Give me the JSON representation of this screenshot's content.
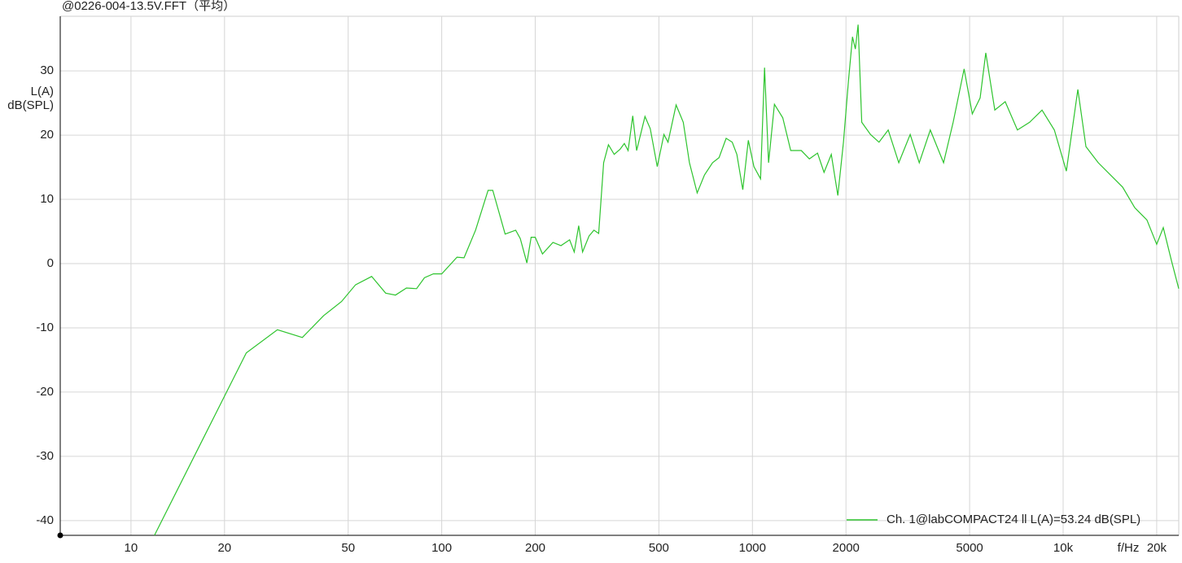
{
  "chart_data": {
    "type": "line",
    "title": "@0226-004-13.5V.FFT（平均）",
    "y_label": "L(A)",
    "y_unit": "dB(SPL)",
    "x_label": "f/Hz",
    "log_x": true,
    "grid": true,
    "legend": "lower right",
    "xlim": [
      5.92,
      23550
    ],
    "ylim": [
      -42.3,
      38.5
    ],
    "xticks": [
      10,
      20,
      50,
      100,
      200,
      500,
      1000,
      2000,
      5000,
      {
        "value": 10000,
        "label": "10k"
      },
      {
        "value": 20000,
        "label": "20k"
      }
    ],
    "yticks": [
      -40,
      -30,
      -20,
      -10,
      0,
      10,
      20,
      30
    ],
    "x": [
      11.9,
      23.5,
      29.6,
      35.6,
      41.7,
      47.6,
      52.8,
      59.5,
      66,
      71,
      77,
      83,
      88,
      94,
      100,
      112,
      118,
      128.5,
      141,
      146,
      160,
      173,
      179,
      188,
      194,
      200,
      211,
      228,
      242,
      258,
      267,
      276,
      284,
      298,
      309,
      320,
      332,
      344,
      359,
      375,
      387,
      398,
      412,
      424,
      451,
      469,
      494,
      519,
      535,
      568,
      599,
      627,
      664,
      701,
      744,
      781,
      823,
      861,
      891,
      931,
      970,
      1011,
      1062,
      1094,
      1127,
      1177,
      1252,
      1328,
      1436,
      1525,
      1620,
      1700,
      1794,
      1883,
      1963,
      2037,
      2099,
      2144,
      2188,
      2248,
      2399,
      2555,
      2735,
      2958,
      3219,
      3443,
      3736,
      4122,
      4426,
      4800,
      5100,
      5405,
      5636,
      6026,
      6509,
      7125,
      7800,
      8551,
      9367,
      10240,
      11150,
      11840,
      12970,
      14200,
      15540,
      17000,
      18600,
      20000,
      21000,
      22300,
      23550
    ],
    "series": [
      {
        "name": "Ch. 1@labCOMPACT24 ll L(A)=53.24 dB(SPL)",
        "color": "#2ec42e",
        "values": [
          -42.3,
          -13.9,
          -10.3,
          -11.5,
          -8.1,
          -5.9,
          -3.3,
          -2.0,
          -4.6,
          -4.9,
          -3.8,
          -3.9,
          -2.2,
          -1.6,
          -1.6,
          1.0,
          0.9,
          5.2,
          11.4,
          11.4,
          4.6,
          5.2,
          3.9,
          0.1,
          4.1,
          4.1,
          1.5,
          3.3,
          2.8,
          3.7,
          1.8,
          5.9,
          1.8,
          4.3,
          5.2,
          4.7,
          15.7,
          18.5,
          17.0,
          17.8,
          18.7,
          17.6,
          23.0,
          17.6,
          22.9,
          21.0,
          15.1,
          20.1,
          18.9,
          24.7,
          22.0,
          15.7,
          11.0,
          13.8,
          15.7,
          16.5,
          19.5,
          18.9,
          17.0,
          11.5,
          19.2,
          15.1,
          13.2,
          30.5,
          15.7,
          24.8,
          22.7,
          17.6,
          17.6,
          16.3,
          17.2,
          14.2,
          17.0,
          10.6,
          18.9,
          28.4,
          35.3,
          33.4,
          37.2,
          22.0,
          20.1,
          18.9,
          20.8,
          15.7,
          20.1,
          15.7,
          20.8,
          15.7,
          22.0,
          30.3,
          23.3,
          25.8,
          32.8,
          23.9,
          25.2,
          20.8,
          22.0,
          23.9,
          20.8,
          14.4,
          27.1,
          18.2,
          15.7,
          13.8,
          11.9,
          8.7,
          6.8,
          3.0,
          5.6,
          0.5,
          -3.9
        ]
      }
    ]
  }
}
